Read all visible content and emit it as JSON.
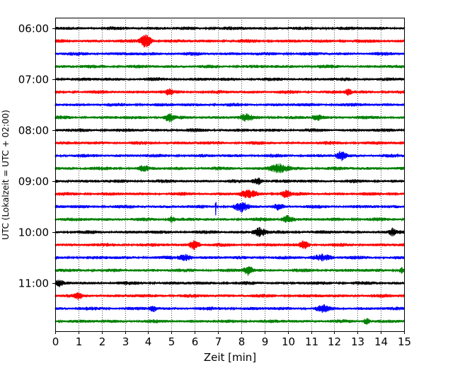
{
  "chart_data": {
    "type": "line",
    "title": "",
    "xlabel": "Zeit  [min]",
    "ylabel": "UTC (Lokalzeit = UTC + 02:00)",
    "xlim": [
      0,
      15
    ],
    "x_ticks": [
      0,
      1,
      2,
      3,
      4,
      5,
      6,
      7,
      8,
      9,
      10,
      11,
      12,
      13,
      14,
      15
    ],
    "grid": "vertical-dotted",
    "hour_labels": [
      "06:00",
      "07:00",
      "08:00",
      "09:00",
      "10:00",
      "11:00"
    ],
    "traces_per_hour": 4,
    "trace_colors": [
      "#000000",
      "#ff0000",
      "#0000ff",
      "#008000"
    ],
    "trace_start_times": [
      "06:00",
      "06:15",
      "06:30",
      "06:45",
      "07:00",
      "07:15",
      "07:30",
      "07:45",
      "08:00",
      "08:15",
      "08:30",
      "08:45",
      "09:00",
      "09:15",
      "09:30",
      "09:45",
      "10:00",
      "10:15",
      "10:30",
      "10:45",
      "11:00",
      "11:15",
      "11:30",
      "11:45"
    ],
    "events": [
      {
        "trace": "06:15",
        "minute": 3.9,
        "amplitude": 10,
        "width": 0.35
      },
      {
        "trace": "07:15",
        "minute": 4.9,
        "amplitude": 4,
        "width": 0.2
      },
      {
        "trace": "07:15",
        "minute": 12.6,
        "amplitude": 4,
        "width": 0.2
      },
      {
        "trace": "07:45",
        "minute": 4.9,
        "amplitude": 5,
        "width": 0.3
      },
      {
        "trace": "07:45",
        "minute": 8.2,
        "amplitude": 4,
        "width": 0.4
      },
      {
        "trace": "07:45",
        "minute": 11.3,
        "amplitude": 4,
        "width": 0.3
      },
      {
        "trace": "08:30",
        "minute": 12.3,
        "amplitude": 6,
        "width": 0.3
      },
      {
        "trace": "08:45",
        "minute": 3.8,
        "amplitude": 4,
        "width": 0.3
      },
      {
        "trace": "08:45",
        "minute": 9.6,
        "amplitude": 6,
        "width": 0.6
      },
      {
        "trace": "09:00",
        "minute": 8.7,
        "amplitude": 5,
        "width": 0.3
      },
      {
        "trace": "09:15",
        "minute": 8.3,
        "amplitude": 5,
        "width": 0.5
      },
      {
        "trace": "09:15",
        "minute": 9.9,
        "amplitude": 5,
        "width": 0.3
      },
      {
        "trace": "09:30",
        "minute": 6.9,
        "amplitude": 17,
        "width": 0.02
      },
      {
        "trace": "09:30",
        "minute": 8.0,
        "amplitude": 6,
        "width": 0.4
      },
      {
        "trace": "09:30",
        "minute": 9.6,
        "amplitude": 4,
        "width": 0.3
      },
      {
        "trace": "09:45",
        "minute": 5.0,
        "amplitude": 4,
        "width": 0.2
      },
      {
        "trace": "09:45",
        "minute": 10.0,
        "amplitude": 5,
        "width": 0.4
      },
      {
        "trace": "10:00",
        "minute": 8.8,
        "amplitude": 6,
        "width": 0.4
      },
      {
        "trace": "10:00",
        "minute": 14.5,
        "amplitude": 4,
        "width": 0.2
      },
      {
        "trace": "10:15",
        "minute": 6.0,
        "amplitude": 7,
        "width": 0.3
      },
      {
        "trace": "10:15",
        "minute": 10.7,
        "amplitude": 5,
        "width": 0.3
      },
      {
        "trace": "10:30",
        "minute": 5.6,
        "amplitude": 4,
        "width": 0.4
      },
      {
        "trace": "10:30",
        "minute": 11.5,
        "amplitude": 4,
        "width": 0.6
      },
      {
        "trace": "10:45",
        "minute": 8.3,
        "amplitude": 6,
        "width": 0.3
      },
      {
        "trace": "10:45",
        "minute": 14.9,
        "amplitude": 4,
        "width": 0.15
      },
      {
        "trace": "11:00",
        "minute": 0.2,
        "amplitude": 4,
        "width": 0.2
      },
      {
        "trace": "11:15",
        "minute": 1.0,
        "amplitude": 4,
        "width": 0.2
      },
      {
        "trace": "11:30",
        "minute": 4.2,
        "amplitude": 4,
        "width": 0.2
      },
      {
        "trace": "11:30",
        "minute": 11.5,
        "amplitude": 4,
        "width": 0.4
      },
      {
        "trace": "11:45",
        "minute": 13.4,
        "amplitude": 5,
        "width": 0.2
      }
    ]
  }
}
